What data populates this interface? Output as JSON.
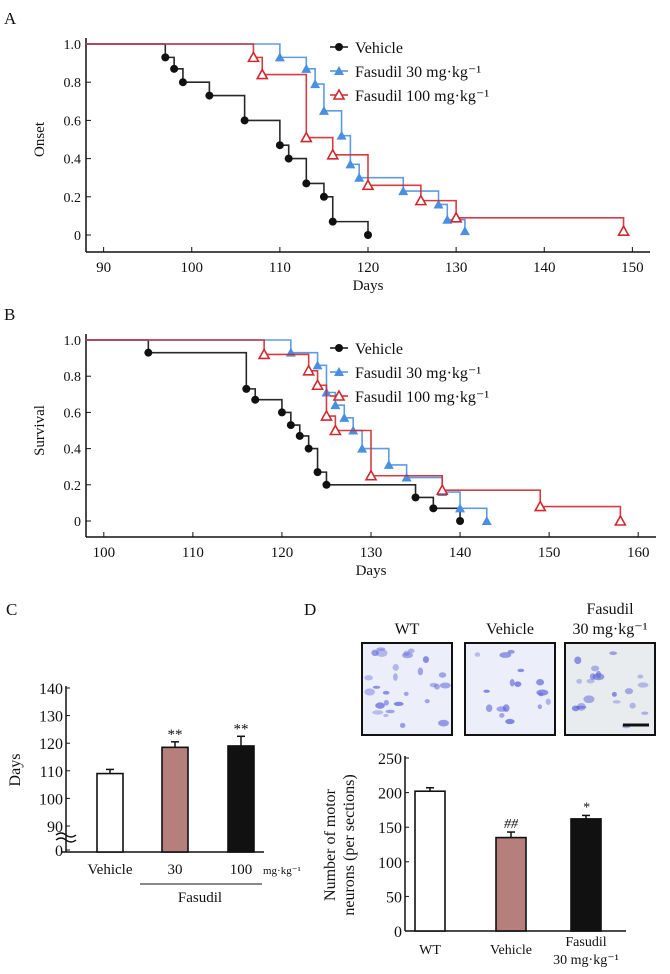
{
  "colors": {
    "vehicle": "#111111",
    "fasudil30": "#4a90e2",
    "fasudil100": "#d0282e",
    "bar_mid": "#b57f7c",
    "stain": "#5a62d8"
  },
  "chart_data": [
    {
      "panel": "A",
      "type": "line",
      "subtype": "kaplan-meier",
      "xlabel": "Days",
      "ylabel": "Onset",
      "xlim": [
        88,
        152
      ],
      "ylim": [
        0,
        1
      ],
      "xticks": [
        90,
        100,
        110,
        120,
        130,
        140,
        150
      ],
      "yticks": [
        "0",
        "0.2",
        "0.4",
        "0.6",
        "0.8",
        "1.0"
      ],
      "legend_position": "top-right",
      "series": [
        {
          "name": "Vehicle",
          "key": "vehicle",
          "marker": "circle",
          "x": [
            97,
            98,
            99,
            102,
            106,
            110,
            111,
            113,
            115,
            116,
            120
          ],
          "y": [
            0.93,
            0.87,
            0.8,
            0.73,
            0.6,
            0.47,
            0.4,
            0.27,
            0.2,
            0.07,
            0
          ]
        },
        {
          "name": "Fasudil 30 mg·kg⁻¹",
          "key": "fasudil30",
          "marker": "triangle-filled",
          "x": [
            110,
            113,
            114,
            115,
            117,
            118,
            119,
            124,
            128,
            129,
            131
          ],
          "y": [
            0.93,
            0.87,
            0.79,
            0.65,
            0.52,
            0.37,
            0.3,
            0.23,
            0.16,
            0.08,
            0.02
          ]
        },
        {
          "name": "Fasudil 100 mg·kg⁻¹",
          "key": "fasudil100",
          "marker": "triangle-open",
          "x": [
            107,
            108,
            113,
            116,
            120,
            126,
            130,
            149
          ],
          "y": [
            0.93,
            0.84,
            0.51,
            0.42,
            0.26,
            0.18,
            0.09,
            0.02
          ]
        }
      ]
    },
    {
      "panel": "B",
      "type": "line",
      "subtype": "kaplan-meier",
      "xlabel": "Days",
      "ylabel": "Survival",
      "xlim": [
        98,
        162
      ],
      "ylim": [
        0,
        1
      ],
      "xticks": [
        100,
        110,
        120,
        130,
        140,
        150,
        160
      ],
      "yticks": [
        "0",
        "0.2",
        "0.4",
        "0.6",
        "0.8",
        "1.0"
      ],
      "legend_position": "top-right",
      "series": [
        {
          "name": "Vehicle",
          "key": "vehicle",
          "marker": "circle",
          "x": [
            105,
            116,
            117,
            120,
            121,
            122,
            123,
            124,
            125,
            135,
            137,
            140
          ],
          "y": [
            0.93,
            0.73,
            0.67,
            0.6,
            0.53,
            0.47,
            0.4,
            0.27,
            0.2,
            0.13,
            0.07,
            0
          ]
        },
        {
          "name": "Fasudil 30 mg·kg⁻¹",
          "key": "fasudil30",
          "marker": "triangle-filled",
          "x": [
            121,
            124,
            125,
            126,
            127,
            128,
            129,
            132,
            134,
            138,
            140,
            143
          ],
          "y": [
            0.93,
            0.86,
            0.71,
            0.64,
            0.57,
            0.5,
            0.4,
            0.31,
            0.24,
            0.16,
            0.07,
            0
          ]
        },
        {
          "name": "Fasudil 100 mg·kg⁻¹",
          "key": "fasudil100",
          "marker": "triangle-open",
          "x": [
            118,
            123,
            124,
            125,
            126,
            130,
            138,
            149,
            158
          ],
          "y": [
            0.92,
            0.83,
            0.75,
            0.58,
            0.5,
            0.25,
            0.17,
            0.08,
            0
          ]
        }
      ]
    },
    {
      "panel": "C",
      "type": "bar",
      "ylabel": "Days",
      "yticks": [
        "0",
        "90",
        "100",
        "110",
        "120",
        "130",
        "140"
      ],
      "ylim": [
        90,
        140
      ],
      "axis_break": true,
      "categories": [
        "Vehicle",
        "30",
        "100"
      ],
      "unit_label": "mg·kg⁻¹",
      "group_label": "Fasudil",
      "values": [
        109,
        118.5,
        119
      ],
      "errors": [
        1.5,
        2,
        3.5
      ],
      "annotations": [
        "",
        "**",
        "**"
      ],
      "fills": [
        "#ffffff",
        "#b57f7c",
        "#111111"
      ]
    },
    {
      "panel": "D",
      "type": "bar",
      "ylabel_lines": [
        "Number of motor",
        "neurons (per sections)"
      ],
      "yticks": [
        "0",
        "50",
        "100",
        "150",
        "200",
        "250"
      ],
      "ylim": [
        0,
        250
      ],
      "categories": [
        [
          "WT"
        ],
        [
          "Vehicle"
        ],
        [
          "Fasudil",
          "30 mg·kg⁻¹"
        ]
      ],
      "values": [
        202,
        135,
        162
      ],
      "errors": [
        5,
        8,
        5
      ],
      "annotations": [
        "",
        "##",
        "*"
      ],
      "fills": [
        "#ffffff",
        "#b57f7c",
        "#111111"
      ]
    }
  ],
  "micrographs": [
    {
      "title": [
        "WT"
      ],
      "density": 1.0
    },
    {
      "title": [
        "Vehicle"
      ],
      "density": 0.6
    },
    {
      "title": [
        "Fasudil",
        "30 mg·kg⁻¹"
      ],
      "density": 0.7,
      "scale_bar": true
    }
  ],
  "panel_labels": [
    "A",
    "B",
    "C",
    "D"
  ]
}
